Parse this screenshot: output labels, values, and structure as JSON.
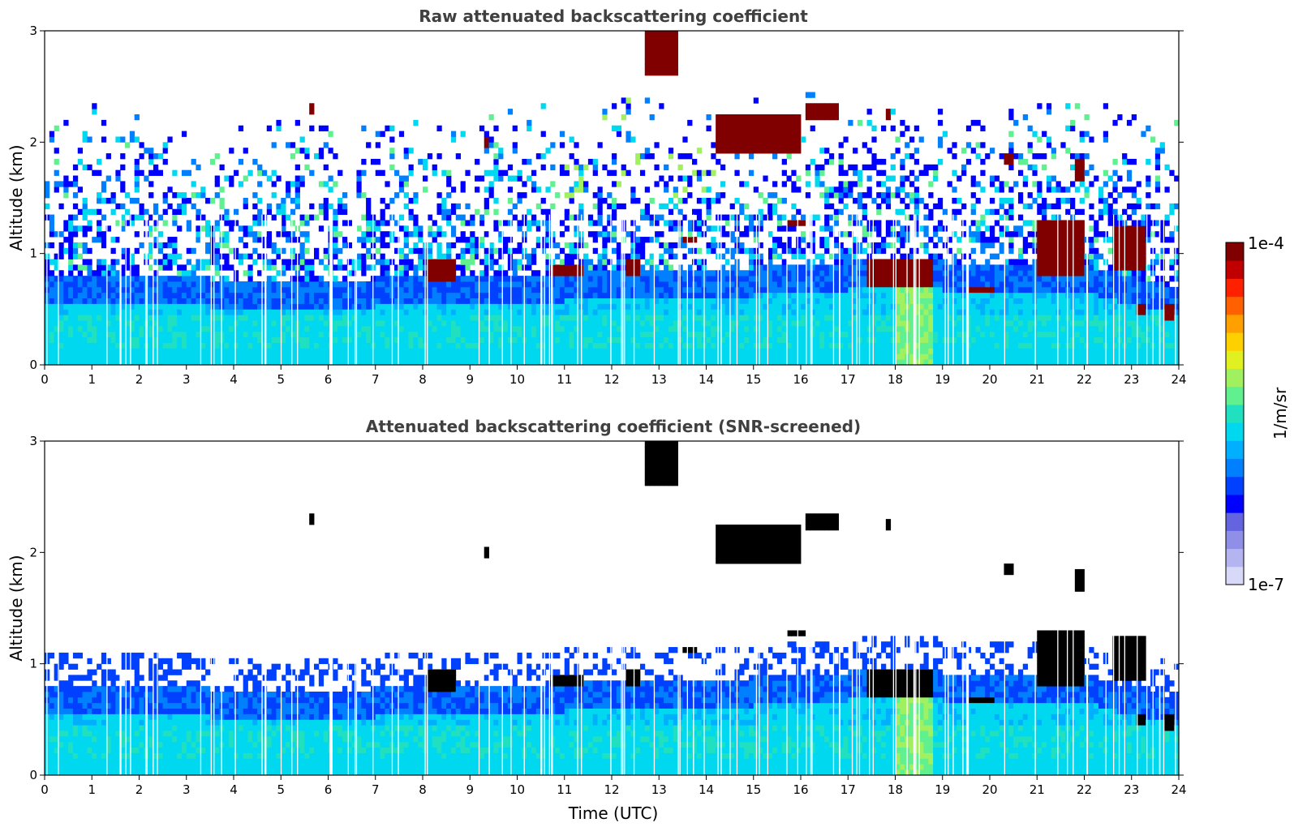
{
  "chart_data": [
    {
      "type": "heatmap",
      "title": "Raw attenuated backscattering coefficient",
      "xlabel": "",
      "ylabel": "Altitude (km)",
      "xlim": [
        0,
        24
      ],
      "ylim": [
        0,
        3
      ],
      "xticks": [
        0,
        1,
        2,
        3,
        4,
        5,
        6,
        7,
        8,
        9,
        10,
        11,
        12,
        13,
        14,
        15,
        16,
        17,
        18,
        19,
        20,
        21,
        22,
        23,
        24
      ],
      "yticks": [
        0,
        1,
        2,
        3
      ],
      "screened": false,
      "features": {
        "boundary_layer_top_km": [
          [
            0,
            0.8
          ],
          [
            3,
            0.78
          ],
          [
            6,
            0.75
          ],
          [
            8,
            0.8
          ],
          [
            10,
            0.8
          ],
          [
            12,
            0.85
          ],
          [
            14,
            0.85
          ],
          [
            16,
            0.9
          ],
          [
            18,
            0.95
          ],
          [
            20,
            0.9
          ],
          [
            22,
            0.9
          ],
          [
            24,
            0.7
          ]
        ],
        "cloud_patches": [
          {
            "t": [
              8.1,
              8.7
            ],
            "z": [
              0.75,
              0.95
            ]
          },
          {
            "t": [
              10.7,
              11.4
            ],
            "z": [
              0.78,
              0.88
            ]
          },
          {
            "t": [
              12.3,
              12.6
            ],
            "z": [
              0.8,
              0.95
            ]
          },
          {
            "t": [
              13.5,
              13.8
            ],
            "z": [
              1.08,
              1.15
            ]
          },
          {
            "t": [
              14.2,
              16.0
            ],
            "z": [
              1.9,
              2.25
            ]
          },
          {
            "t": [
              15.7,
              16.1
            ],
            "z": [
              1.25,
              1.32
            ]
          },
          {
            "t": [
              16.1,
              16.8
            ],
            "z": [
              2.2,
              2.35
            ]
          },
          {
            "t": [
              12.7,
              13.4
            ],
            "z": [
              2.6,
              3.0
            ]
          },
          {
            "t": [
              17.4,
              18.8
            ],
            "z": [
              0.7,
              0.95
            ]
          },
          {
            "t": [
              19.5,
              20.1
            ],
            "z": [
              0.65,
              0.72
            ]
          },
          {
            "t": [
              21.0,
              22.0
            ],
            "z": [
              0.8,
              1.3
            ]
          },
          {
            "t": [
              22.6,
              23.3
            ],
            "z": [
              0.85,
              1.25
            ]
          },
          {
            "t": [
              23.1,
              23.3
            ],
            "z": [
              0.45,
              0.55
            ]
          },
          {
            "t": [
              23.7,
              23.9
            ],
            "z": [
              0.4,
              0.55
            ]
          },
          {
            "t": [
              5.6,
              5.7
            ],
            "z": [
              2.25,
              2.35
            ]
          },
          {
            "t": [
              9.3,
              9.4
            ],
            "z": [
              1.95,
              2.05
            ]
          },
          {
            "t": [
              20.3,
              20.5
            ],
            "z": [
              1.8,
              1.9
            ]
          },
          {
            "t": [
              21.8,
              22.0
            ],
            "z": [
              1.65,
              1.85
            ]
          },
          {
            "t": [
              17.8,
              17.9
            ],
            "z": [
              2.2,
              2.3
            ]
          }
        ]
      }
    },
    {
      "type": "heatmap",
      "title": "Attenuated backscattering coefficient (SNR-screened)",
      "xlabel": "Time (UTC)",
      "ylabel": "Altitude (km)",
      "xlim": [
        0,
        24
      ],
      "ylim": [
        0,
        3
      ],
      "xticks": [
        0,
        1,
        2,
        3,
        4,
        5,
        6,
        7,
        8,
        9,
        10,
        11,
        12,
        13,
        14,
        15,
        16,
        17,
        18,
        19,
        20,
        21,
        22,
        23,
        24
      ],
      "yticks": [
        0,
        1,
        2,
        3
      ],
      "screened": true
    }
  ],
  "colorbar": {
    "label": "1/m/sr",
    "min_label": "1e-7",
    "max_label": "1e-4",
    "colors": [
      "#d8d8f8",
      "#b4b4f0",
      "#8f8fe8",
      "#6464e0",
      "#0000ff",
      "#0040ff",
      "#0080ff",
      "#00b0ff",
      "#00d8f0",
      "#20e0c0",
      "#60f090",
      "#a0f060",
      "#e0f020",
      "#ffd000",
      "#ffa000",
      "#ff6000",
      "#ff2000",
      "#c00000",
      "#800000"
    ]
  }
}
